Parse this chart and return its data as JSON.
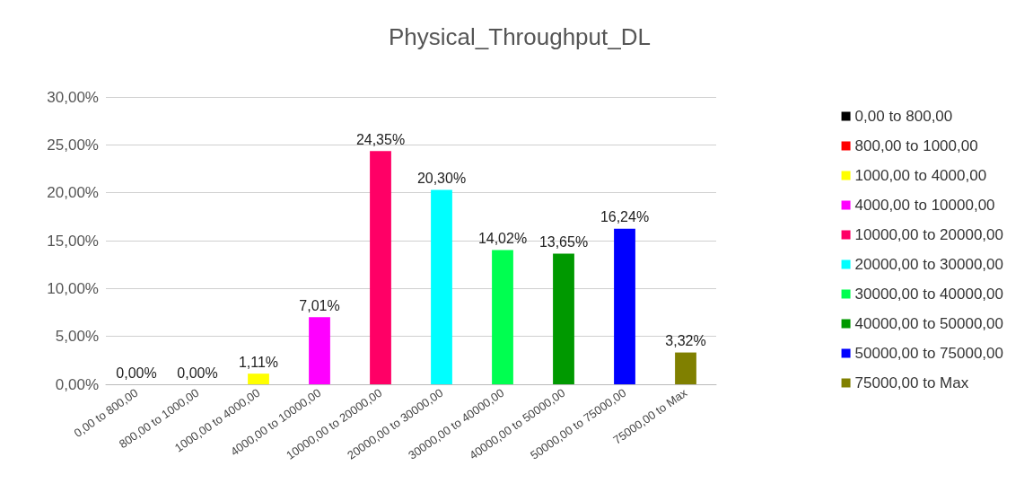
{
  "chart_data": {
    "type": "bar",
    "title": "Physical_Throughput_DL",
    "categories": [
      "0,00 to 800,00",
      "800,00 to 1000,00",
      "1000,00 to 4000,00",
      "4000,00 to 10000,00",
      "10000,00 to 20000,00",
      "20000,00 to 30000,00",
      "30000,00 to 40000,00",
      "40000,00 to 50000,00",
      "50000,00 to 75000,00",
      "75000,00 to Max"
    ],
    "series": [
      {
        "name": "0,00 to 800,00",
        "color": "#000000",
        "values": [
          0,
          null,
          null,
          null,
          null,
          null,
          null,
          null,
          null,
          null
        ],
        "value_labels": [
          "0,00%",
          null,
          null,
          null,
          null,
          null,
          null,
          null,
          null,
          null
        ]
      },
      {
        "name": "800,00 to 1000,00",
        "color": "#ff0000",
        "values": [
          null,
          0,
          null,
          null,
          null,
          null,
          null,
          null,
          null,
          null
        ],
        "value_labels": [
          null,
          "0,00%",
          null,
          null,
          null,
          null,
          null,
          null,
          null,
          null
        ]
      },
      {
        "name": "1000,00 to 4000,00",
        "color": "#ffff00",
        "values": [
          null,
          null,
          1.11,
          null,
          null,
          null,
          null,
          null,
          null,
          null
        ],
        "value_labels": [
          null,
          null,
          "1,11%",
          null,
          null,
          null,
          null,
          null,
          null,
          null
        ]
      },
      {
        "name": "4000,00 to 10000,00",
        "color": "#ff00ff",
        "values": [
          null,
          null,
          null,
          7.01,
          null,
          null,
          null,
          null,
          null,
          null
        ],
        "value_labels": [
          null,
          null,
          null,
          "7,01%",
          null,
          null,
          null,
          null,
          null,
          null
        ]
      },
      {
        "name": "10000,00 to 20000,00",
        "color": "#ff0066",
        "values": [
          null,
          null,
          null,
          null,
          24.35,
          null,
          null,
          null,
          null,
          null
        ],
        "value_labels": [
          null,
          null,
          null,
          null,
          "24,35%",
          null,
          null,
          null,
          null,
          null
        ]
      },
      {
        "name": "20000,00 to 30000,00",
        "color": "#00ffff",
        "values": [
          null,
          null,
          null,
          null,
          null,
          20.3,
          null,
          null,
          null,
          null
        ],
        "value_labels": [
          null,
          null,
          null,
          null,
          null,
          "20,30%",
          null,
          null,
          null,
          null
        ]
      },
      {
        "name": "30000,00 to 40000,00",
        "color": "#00ff50",
        "values": [
          null,
          null,
          null,
          null,
          null,
          null,
          14.02,
          null,
          null,
          null
        ],
        "value_labels": [
          null,
          null,
          null,
          null,
          null,
          null,
          "14,02%",
          null,
          null,
          null
        ]
      },
      {
        "name": "40000,00 to 50000,00",
        "color": "#009900",
        "values": [
          null,
          null,
          null,
          null,
          null,
          null,
          null,
          13.65,
          null,
          null
        ],
        "value_labels": [
          null,
          null,
          null,
          null,
          null,
          null,
          null,
          "13,65%",
          null,
          null
        ]
      },
      {
        "name": "50000,00 to 75000,00",
        "color": "#0000ff",
        "values": [
          null,
          null,
          null,
          null,
          null,
          null,
          null,
          null,
          16.24,
          null
        ],
        "value_labels": [
          null,
          null,
          null,
          null,
          null,
          null,
          null,
          null,
          "16,24%",
          null
        ]
      },
      {
        "name": "75000,00 to Max",
        "color": "#808000",
        "values": [
          null,
          null,
          null,
          null,
          null,
          null,
          null,
          null,
          null,
          3.32
        ],
        "value_labels": [
          null,
          null,
          null,
          null,
          null,
          null,
          null,
          null,
          null,
          "3,32%"
        ]
      }
    ],
    "ylim": [
      0,
      30
    ],
    "yticks": [
      {
        "value": 0,
        "label": "0,00%"
      },
      {
        "value": 5,
        "label": "5,00%"
      },
      {
        "value": 10,
        "label": "10,00%"
      },
      {
        "value": 15,
        "label": "15,00%"
      },
      {
        "value": 20,
        "label": "20,00%"
      },
      {
        "value": 25,
        "label": "25,00%"
      },
      {
        "value": 30,
        "label": "30,00%"
      }
    ],
    "grid": "y",
    "legend": "right"
  }
}
